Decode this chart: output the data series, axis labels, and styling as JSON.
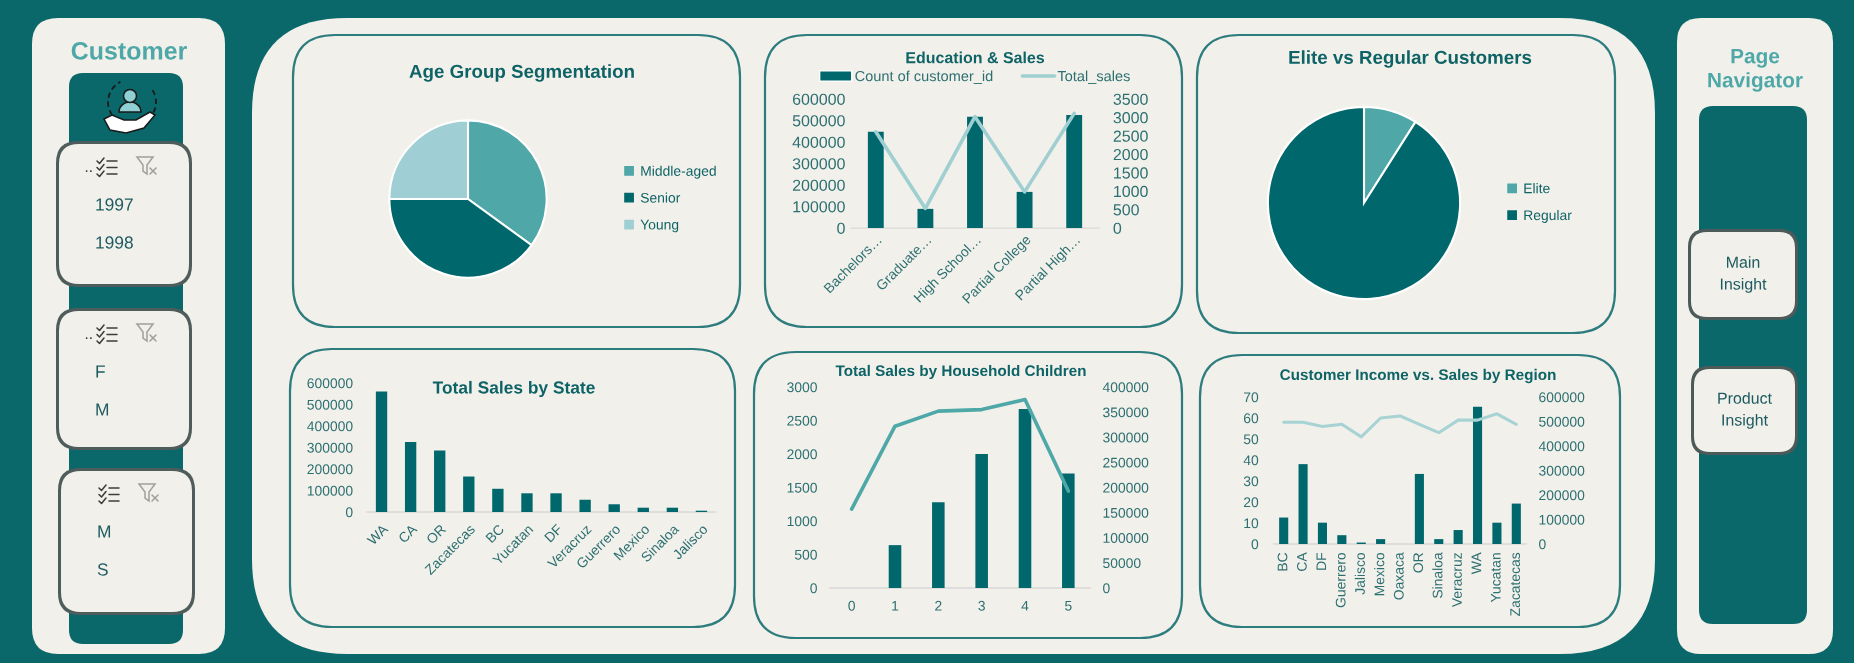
{
  "chart_data": [
    {
      "type": "other",
      "title": "Customer"
    },
    {
      "type": "other",
      "title": "..",
      "annotations": [
        "1997",
        "1998"
      ]
    },
    {
      "type": "other",
      "title": "..",
      "annotations": [
        "F",
        "M"
      ]
    },
    {
      "type": "other",
      "annotations": [
        "M",
        "S"
      ]
    },
    {
      "type": "pie",
      "title": "Age Group Segmentation",
      "categories": [
        "Middle-aged",
        "Senior",
        "Young"
      ],
      "values": [
        35,
        40,
        25
      ],
      "colors": [
        "#4fa7a8",
        "#00686c",
        "#9fcfd4"
      ],
      "legend": "right"
    },
    {
      "type": "bar",
      "title": "Education & Sales",
      "categories": [
        "Bachelors…",
        "Graduate…",
        "High School…",
        "Partial College",
        "Partial High…"
      ],
      "series": [
        {
          "name": "Count of customer_id",
          "type": "bar",
          "color": "#00686c",
          "values": [
            448000,
            89000,
            518000,
            168000,
            526000
          ]
        },
        {
          "name": "Total_sales",
          "type": "line",
          "axis": "y2",
          "color": "#9fcfd1",
          "values": [
            2610,
            530,
            3020,
            980,
            3110
          ]
        }
      ],
      "ylim": [
        0,
        600000
      ],
      "yticks": [
        0,
        100000,
        200000,
        300000,
        400000,
        500000,
        600000
      ],
      "y2lim": [
        0,
        3500
      ],
      "y2ticks": [
        0,
        500,
        1000,
        1500,
        2000,
        2500,
        3000,
        3500
      ],
      "legend": "top"
    },
    {
      "type": "pie",
      "title": "Elite vs Regular Customers",
      "categories": [
        "Elite",
        "Regular"
      ],
      "values": [
        9,
        91
      ],
      "colors": [
        "#4fa7a8",
        "#00686c"
      ],
      "legend": "right"
    },
    {
      "type": "bar",
      "title": "Total Sales by State",
      "categories": [
        "WA",
        "CA",
        "OR",
        "Zacatecas",
        "BC",
        "Yucatan",
        "DF",
        "Veracruz",
        "Guerrero",
        "Mexico",
        "Sinaloa",
        "Jalisco"
      ],
      "values": [
        560000,
        326000,
        286000,
        165000,
        108000,
        87000,
        87000,
        57000,
        36000,
        20000,
        20000,
        6000
      ],
      "color": "#00686c",
      "ylim": [
        0,
        600000
      ],
      "yticks": [
        0,
        100000,
        200000,
        300000,
        400000,
        500000,
        600000
      ]
    },
    {
      "type": "bar",
      "title": "Total Sales by Household Children",
      "categories": [
        "0",
        "1",
        "2",
        "3",
        "4",
        "5"
      ],
      "series": [
        {
          "type": "bar",
          "color": "#00686c",
          "values": [
            null,
            640,
            1280,
            2000,
            2670,
            1710
          ]
        },
        {
          "type": "line",
          "axis": "y2",
          "color": "#4ea8a8",
          "values": [
            157000,
            322000,
            352000,
            355000,
            375000,
            193000
          ]
        }
      ],
      "ylim": [
        0,
        3000
      ],
      "yticks": [
        0,
        500,
        1000,
        1500,
        2000,
        2500,
        3000
      ],
      "y2lim": [
        0,
        400000
      ],
      "y2ticks": [
        0,
        50000,
        100000,
        150000,
        200000,
        250000,
        300000,
        350000,
        400000
      ]
    },
    {
      "type": "bar",
      "title": "Customer Income vs. Sales by Region",
      "categories": [
        "BC",
        "CA",
        "DF",
        "Guerrero",
        "Jalisco",
        "Mexico",
        "Oaxaca",
        "OR",
        "Sinaloa",
        "Veracruz",
        "WA",
        "Yucatan",
        "Zacatecas"
      ],
      "series": [
        {
          "type": "bar",
          "axis": "y2",
          "color": "#00686c",
          "values": [
            108000,
            326000,
            87000,
            36000,
            6000,
            20000,
            null,
            286000,
            20000,
            57000,
            560000,
            87000,
            165000
          ]
        },
        {
          "type": "line",
          "color": "#a7d3d4",
          "values": [
            58,
            58,
            56,
            57,
            51,
            60,
            61,
            57,
            53,
            59,
            59,
            62,
            57
          ]
        }
      ],
      "ylim": [
        0,
        70
      ],
      "yticks": [
        0,
        10,
        20,
        30,
        40,
        50,
        60,
        70
      ],
      "y2lim": [
        0,
        600000
      ],
      "y2ticks": [
        0,
        100000,
        200000,
        300000,
        400000,
        500000,
        600000
      ]
    },
    {
      "type": "other",
      "title": "Page Navigator",
      "annotations": [
        "Main Insight",
        "Product Insight"
      ]
    }
  ]
}
